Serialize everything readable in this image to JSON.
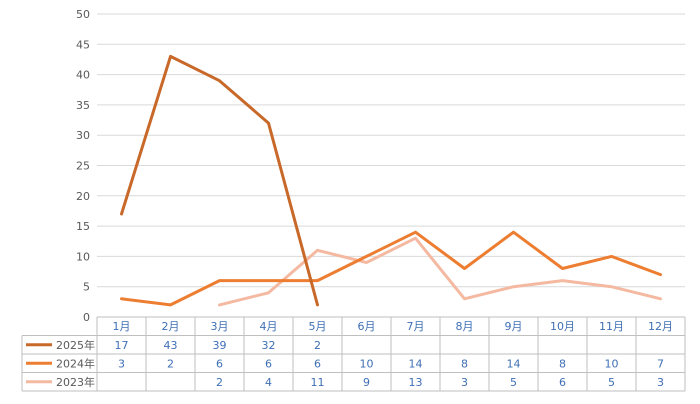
{
  "chart_data": {
    "type": "line",
    "categories": [
      "1月",
      "2月",
      "3月",
      "4月",
      "5月",
      "6月",
      "7月",
      "8月",
      "9月",
      "10月",
      "11月",
      "12月"
    ],
    "ylim": [
      0,
      50
    ],
    "yticks": [
      0,
      5,
      10,
      15,
      20,
      25,
      30,
      35,
      40,
      45,
      50
    ],
    "grid": true,
    "legend_placement": "left, in data table",
    "series": [
      {
        "name": "2025年",
        "color": "#c8692a",
        "values": [
          17,
          43,
          39,
          32,
          2,
          null,
          null,
          null,
          null,
          null,
          null,
          null
        ]
      },
      {
        "name": "2024年",
        "color": "#ed7d31",
        "values": [
          3,
          2,
          6,
          6,
          6,
          10,
          14,
          8,
          14,
          8,
          10,
          7
        ]
      },
      {
        "name": "2023年",
        "color": "#f4b9a0",
        "values": [
          null,
          null,
          2,
          4,
          11,
          9,
          13,
          3,
          5,
          6,
          5,
          3
        ]
      }
    ]
  }
}
